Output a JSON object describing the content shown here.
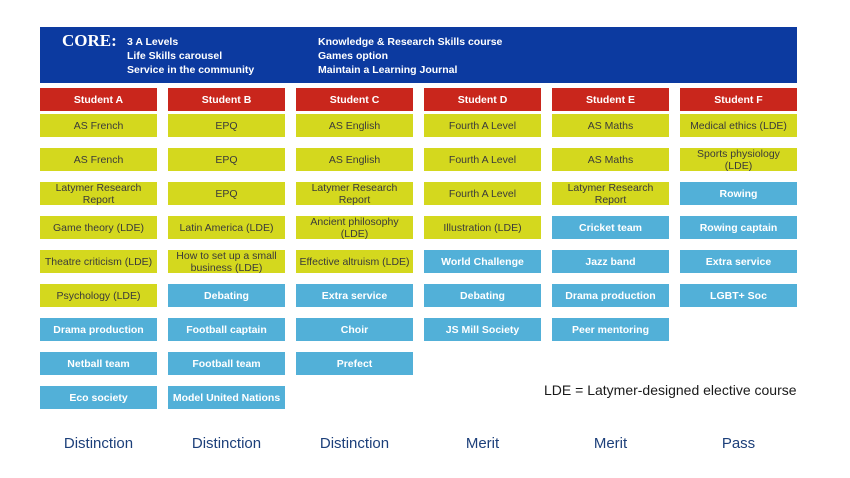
{
  "core": {
    "title": "CORE:",
    "left_items": [
      "3 A Levels",
      "Life Skills carousel",
      "Service in the community"
    ],
    "right_items": [
      "Knowledge & Research Skills course",
      "Games option",
      "Maintain a Learning Journal"
    ]
  },
  "students": [
    {
      "name": "Student A",
      "items": [
        {
          "text": "AS French",
          "color": "yellow"
        },
        {
          "text": "AS French",
          "color": "yellow"
        },
        {
          "text": "Latymer Research Report",
          "color": "yellow"
        },
        {
          "text": "Game theory (LDE)",
          "color": "yellow"
        },
        {
          "text": "Theatre criticism (LDE)",
          "color": "yellow"
        },
        {
          "text": "Psychology (LDE)",
          "color": "yellow"
        },
        {
          "text": "Drama production",
          "color": "blue"
        },
        {
          "text": "Netball team",
          "color": "blue"
        },
        {
          "text": "Eco society",
          "color": "blue"
        }
      ],
      "grade": "Distinction"
    },
    {
      "name": "Student B",
      "items": [
        {
          "text": "EPQ",
          "color": "yellow"
        },
        {
          "text": "EPQ",
          "color": "yellow"
        },
        {
          "text": "EPQ",
          "color": "yellow"
        },
        {
          "text": "Latin America (LDE)",
          "color": "yellow"
        },
        {
          "text": "How to set up a small business (LDE)",
          "color": "yellow"
        },
        {
          "text": "Debating",
          "color": "blue"
        },
        {
          "text": "Football captain",
          "color": "blue"
        },
        {
          "text": "Football team",
          "color": "blue"
        },
        {
          "text": "Model United Nations",
          "color": "blue"
        }
      ],
      "grade": "Distinction"
    },
    {
      "name": "Student C",
      "items": [
        {
          "text": "AS English",
          "color": "yellow"
        },
        {
          "text": "AS English",
          "color": "yellow"
        },
        {
          "text": "Latymer Research Report",
          "color": "yellow"
        },
        {
          "text": "Ancient philosophy (LDE)",
          "color": "yellow"
        },
        {
          "text": "Effective altruism (LDE)",
          "color": "yellow"
        },
        {
          "text": "Extra service",
          "color": "blue"
        },
        {
          "text": "Choir",
          "color": "blue"
        },
        {
          "text": "Prefect",
          "color": "blue"
        }
      ],
      "grade": "Distinction"
    },
    {
      "name": "Student D",
      "items": [
        {
          "text": "Fourth A Level",
          "color": "yellow"
        },
        {
          "text": "Fourth A Level",
          "color": "yellow"
        },
        {
          "text": "Fourth A Level",
          "color": "yellow"
        },
        {
          "text": "Illustration (LDE)",
          "color": "yellow"
        },
        {
          "text": "World Challenge",
          "color": "blue"
        },
        {
          "text": "Debating",
          "color": "blue"
        },
        {
          "text": "JS Mill Society",
          "color": "blue"
        }
      ],
      "grade": "Merit"
    },
    {
      "name": "Student E",
      "items": [
        {
          "text": "AS Maths",
          "color": "yellow"
        },
        {
          "text": "AS Maths",
          "color": "yellow"
        },
        {
          "text": "Latymer Research Report",
          "color": "yellow"
        },
        {
          "text": "Cricket team",
          "color": "blue"
        },
        {
          "text": "Jazz band",
          "color": "blue"
        },
        {
          "text": "Drama production",
          "color": "blue"
        },
        {
          "text": "Peer mentoring",
          "color": "blue"
        }
      ],
      "grade": "Merit"
    },
    {
      "name": "Student F",
      "items": [
        {
          "text": "Medical ethics (LDE)",
          "color": "yellow"
        },
        {
          "text": "Sports physiology (LDE)",
          "color": "yellow"
        },
        {
          "text": "Rowing",
          "color": "blue"
        },
        {
          "text": "Rowing captain",
          "color": "blue"
        },
        {
          "text": "Extra service",
          "color": "blue"
        },
        {
          "text": "LGBT+ Soc",
          "color": "blue"
        }
      ],
      "grade": "Pass"
    }
  ],
  "legend": "LDE = Latymer-designed elective course",
  "colors": {
    "core_background": "#0c3aa0",
    "header_red": "#c9261c",
    "activity_yellow": "#d4d81e",
    "activity_blue": "#52b0d8",
    "grade_text": "#1c3f7a"
  }
}
